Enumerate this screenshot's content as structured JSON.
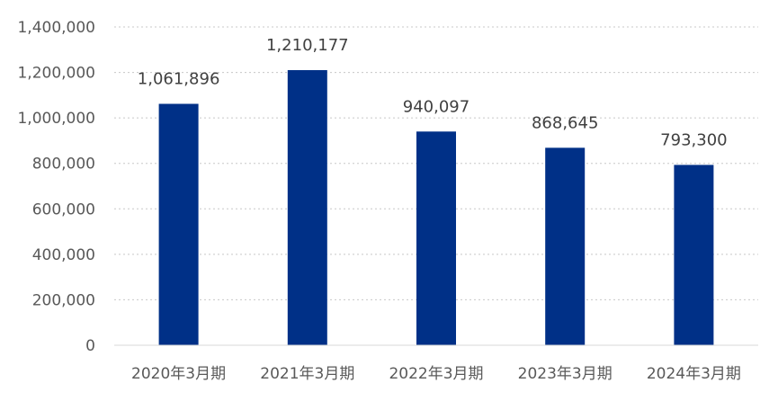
{
  "chart_data": {
    "type": "bar",
    "categories": [
      "2020年3月期",
      "2021年3月期",
      "2022年3月期",
      "2023年3月期",
      "2024年3月期"
    ],
    "values": [
      1061896,
      1210177,
      940097,
      868645,
      793300
    ],
    "data_labels": [
      "1,061,896",
      "1,210,177",
      "940,097",
      "868,645",
      "793,300"
    ],
    "title": "",
    "xlabel": "",
    "ylabel": "",
    "ylim": [
      0,
      1400000
    ],
    "yticks": [
      0,
      200000,
      400000,
      600000,
      800000,
      1000000,
      1200000,
      1400000
    ],
    "ytick_labels": [
      "0",
      "200,000",
      "400,000",
      "600,000",
      "800,000",
      "1,000,000",
      "1,200,000",
      "1,400,000"
    ],
    "grid": true,
    "legend": "none",
    "bar_color": "#003087"
  }
}
